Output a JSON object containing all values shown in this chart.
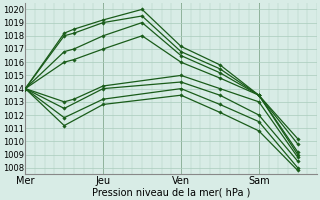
{
  "xlabel": "Pression niveau de la mer( hPa )",
  "ylim": [
    1007.5,
    1020.5
  ],
  "yticks": [
    1008,
    1009,
    1010,
    1011,
    1012,
    1013,
    1014,
    1015,
    1016,
    1017,
    1018,
    1019,
    1020
  ],
  "xlim": [
    0,
    180
  ],
  "x_tick_positions": [
    0,
    48,
    96,
    144
  ],
  "x_tick_labels": [
    "Mer",
    "Jeu",
    "Ven",
    "Sam"
  ],
  "bg_color": "#d8ece6",
  "grid_color": "#aaccbc",
  "line_color": "#1a5c1a",
  "marker": "D",
  "markersize": 1.8,
  "linewidth": 0.9,
  "lines": [
    {
      "x": [
        0,
        24,
        30,
        48,
        72,
        96,
        120,
        144,
        168
      ],
      "y": [
        1014.0,
        1018.0,
        1018.2,
        1019.0,
        1019.5,
        1016.8,
        1015.5,
        1013.5,
        1009.8
      ]
    },
    {
      "x": [
        0,
        24,
        30,
        48,
        72,
        96,
        120,
        144,
        168
      ],
      "y": [
        1014.0,
        1018.2,
        1018.5,
        1019.2,
        1020.0,
        1017.2,
        1015.8,
        1013.5,
        1010.2
      ]
    },
    {
      "x": [
        0,
        24,
        30,
        48,
        72,
        96,
        120,
        144,
        168
      ],
      "y": [
        1014.0,
        1016.8,
        1017.0,
        1018.0,
        1019.0,
        1016.5,
        1015.2,
        1013.5,
        1009.2
      ]
    },
    {
      "x": [
        0,
        24,
        30,
        48,
        72,
        96,
        120,
        144,
        168
      ],
      "y": [
        1014.0,
        1016.0,
        1016.2,
        1017.0,
        1018.0,
        1016.0,
        1014.8,
        1013.5,
        1009.0
      ]
    },
    {
      "x": [
        0,
        24,
        30,
        48,
        96,
        120,
        144,
        168
      ],
      "y": [
        1014.0,
        1013.0,
        1013.2,
        1014.2,
        1015.0,
        1014.0,
        1013.0,
        1008.8
      ]
    },
    {
      "x": [
        0,
        24,
        48,
        96,
        120,
        144,
        168
      ],
      "y": [
        1014.0,
        1012.5,
        1014.0,
        1014.5,
        1013.5,
        1012.0,
        1008.5
      ]
    },
    {
      "x": [
        0,
        24,
        48,
        96,
        120,
        144,
        168
      ],
      "y": [
        1014.0,
        1011.8,
        1013.2,
        1014.0,
        1012.8,
        1011.5,
        1008.0
      ]
    },
    {
      "x": [
        0,
        24,
        48,
        96,
        120,
        144,
        168
      ],
      "y": [
        1014.0,
        1011.2,
        1012.8,
        1013.5,
        1012.2,
        1010.8,
        1007.8
      ]
    }
  ]
}
